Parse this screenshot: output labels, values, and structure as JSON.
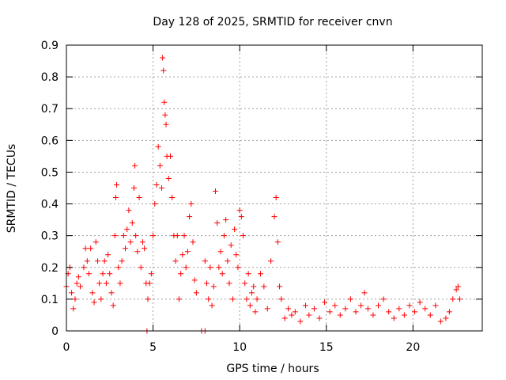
{
  "chart_data": {
    "type": "scatter",
    "title": "Day 128 of 2025, SRMTID for receiver cnvn",
    "xlabel": "GPS time / hours",
    "ylabel": "SRMTID / TECUs",
    "xlim": [
      0,
      24
    ],
    "ylim": [
      0,
      0.9
    ],
    "xticks": [
      0,
      5,
      10,
      15,
      20
    ],
    "xtick_labels": [
      "0",
      "5",
      "10",
      "15",
      "20"
    ],
    "yticks": [
      0,
      0.1,
      0.2,
      0.3,
      0.4,
      0.5,
      0.6,
      0.7,
      0.8,
      0.9
    ],
    "ytick_labels": [
      "0",
      "0.1",
      "0.2",
      "0.3",
      "0.4",
      "0.5",
      "0.6",
      "0.7",
      "0.8",
      "0.9"
    ],
    "grid": true,
    "marker": "plus",
    "color": "#ff0000",
    "series": [
      {
        "name": "SRMTID",
        "points": [
          [
            0.0,
            0.14
          ],
          [
            0.1,
            0.18
          ],
          [
            0.2,
            0.2
          ],
          [
            0.3,
            0.12
          ],
          [
            0.4,
            0.07
          ],
          [
            0.5,
            0.1
          ],
          [
            0.6,
            0.15
          ],
          [
            0.7,
            0.17
          ],
          [
            0.8,
            0.14
          ],
          [
            1.0,
            0.2
          ],
          [
            1.1,
            0.26
          ],
          [
            1.2,
            0.22
          ],
          [
            1.3,
            0.18
          ],
          [
            1.4,
            0.26
          ],
          [
            1.5,
            0.12
          ],
          [
            1.6,
            0.09
          ],
          [
            1.7,
            0.28
          ],
          [
            1.8,
            0.22
          ],
          [
            1.9,
            0.15
          ],
          [
            2.0,
            0.1
          ],
          [
            2.1,
            0.18
          ],
          [
            2.2,
            0.22
          ],
          [
            2.3,
            0.15
          ],
          [
            2.4,
            0.24
          ],
          [
            2.5,
            0.18
          ],
          [
            2.6,
            0.12
          ],
          [
            2.7,
            0.08
          ],
          [
            2.8,
            0.3
          ],
          [
            2.85,
            0.42
          ],
          [
            2.9,
            0.46
          ],
          [
            3.0,
            0.2
          ],
          [
            3.1,
            0.15
          ],
          [
            3.2,
            0.22
          ],
          [
            3.3,
            0.3
          ],
          [
            3.4,
            0.26
          ],
          [
            3.5,
            0.32
          ],
          [
            3.6,
            0.38
          ],
          [
            3.7,
            0.28
          ],
          [
            3.8,
            0.34
          ],
          [
            3.9,
            0.45
          ],
          [
            3.95,
            0.52
          ],
          [
            4.0,
            0.3
          ],
          [
            4.1,
            0.25
          ],
          [
            4.2,
            0.42
          ],
          [
            4.3,
            0.2
          ],
          [
            4.4,
            0.28
          ],
          [
            4.5,
            0.26
          ],
          [
            4.6,
            0.15
          ],
          [
            4.65,
            0.0
          ],
          [
            4.7,
            0.1
          ],
          [
            4.8,
            0.15
          ],
          [
            4.9,
            0.18
          ],
          [
            5.0,
            0.3
          ],
          [
            5.1,
            0.4
          ],
          [
            5.2,
            0.46
          ],
          [
            5.3,
            0.58
          ],
          [
            5.4,
            0.52
          ],
          [
            5.5,
            0.45
          ],
          [
            5.55,
            0.86
          ],
          [
            5.6,
            0.82
          ],
          [
            5.65,
            0.72
          ],
          [
            5.7,
            0.68
          ],
          [
            5.75,
            0.65
          ],
          [
            5.8,
            0.55
          ],
          [
            5.9,
            0.48
          ],
          [
            6.0,
            0.55
          ],
          [
            6.1,
            0.42
          ],
          [
            6.2,
            0.3
          ],
          [
            6.3,
            0.22
          ],
          [
            6.4,
            0.3
          ],
          [
            6.5,
            0.1
          ],
          [
            6.6,
            0.18
          ],
          [
            6.7,
            0.24
          ],
          [
            6.8,
            0.3
          ],
          [
            6.9,
            0.2
          ],
          [
            7.0,
            0.25
          ],
          [
            7.1,
            0.36
          ],
          [
            7.2,
            0.4
          ],
          [
            7.3,
            0.28
          ],
          [
            7.4,
            0.16
          ],
          [
            7.5,
            0.12
          ],
          [
            7.8,
            0.0
          ],
          [
            8.0,
            0.0
          ],
          [
            8.0,
            0.22
          ],
          [
            8.1,
            0.15
          ],
          [
            8.2,
            0.1
          ],
          [
            8.3,
            0.2
          ],
          [
            8.4,
            0.08
          ],
          [
            8.5,
            0.14
          ],
          [
            8.6,
            0.44
          ],
          [
            8.7,
            0.34
          ],
          [
            8.8,
            0.2
          ],
          [
            8.9,
            0.25
          ],
          [
            9.0,
            0.18
          ],
          [
            9.1,
            0.3
          ],
          [
            9.2,
            0.35
          ],
          [
            9.3,
            0.22
          ],
          [
            9.4,
            0.15
          ],
          [
            9.5,
            0.27
          ],
          [
            9.6,
            0.1
          ],
          [
            9.7,
            0.32
          ],
          [
            9.8,
            0.24
          ],
          [
            9.9,
            0.2
          ],
          [
            10.0,
            0.38
          ],
          [
            10.1,
            0.36
          ],
          [
            10.2,
            0.3
          ],
          [
            10.3,
            0.15
          ],
          [
            10.4,
            0.1
          ],
          [
            10.5,
            0.18
          ],
          [
            10.6,
            0.08
          ],
          [
            10.7,
            0.12
          ],
          [
            10.8,
            0.14
          ],
          [
            10.9,
            0.06
          ],
          [
            11.0,
            0.1
          ],
          [
            11.2,
            0.18
          ],
          [
            11.4,
            0.14
          ],
          [
            11.6,
            0.07
          ],
          [
            11.8,
            0.22
          ],
          [
            12.0,
            0.36
          ],
          [
            12.1,
            0.42
          ],
          [
            12.2,
            0.28
          ],
          [
            12.3,
            0.14
          ],
          [
            12.4,
            0.1
          ],
          [
            12.6,
            0.04
          ],
          [
            12.8,
            0.07
          ],
          [
            13.0,
            0.05
          ],
          [
            13.2,
            0.06
          ],
          [
            13.5,
            0.03
          ],
          [
            13.8,
            0.08
          ],
          [
            14.0,
            0.05
          ],
          [
            14.3,
            0.07
          ],
          [
            14.6,
            0.04
          ],
          [
            14.9,
            0.09
          ],
          [
            15.2,
            0.06
          ],
          [
            15.5,
            0.08
          ],
          [
            15.8,
            0.05
          ],
          [
            16.1,
            0.07
          ],
          [
            16.4,
            0.1
          ],
          [
            16.7,
            0.06
          ],
          [
            17.0,
            0.08
          ],
          [
            17.2,
            0.12
          ],
          [
            17.4,
            0.07
          ],
          [
            17.7,
            0.05
          ],
          [
            18.0,
            0.08
          ],
          [
            18.3,
            0.1
          ],
          [
            18.6,
            0.06
          ],
          [
            18.9,
            0.04
          ],
          [
            19.2,
            0.07
          ],
          [
            19.5,
            0.05
          ],
          [
            19.8,
            0.08
          ],
          [
            20.1,
            0.06
          ],
          [
            20.4,
            0.09
          ],
          [
            20.7,
            0.07
          ],
          [
            21.0,
            0.05
          ],
          [
            21.3,
            0.08
          ],
          [
            21.6,
            0.03
          ],
          [
            21.9,
            0.04
          ],
          [
            22.1,
            0.06
          ],
          [
            22.3,
            0.1
          ],
          [
            22.5,
            0.13
          ],
          [
            22.6,
            0.14
          ],
          [
            22.7,
            0.1
          ]
        ]
      }
    ]
  }
}
